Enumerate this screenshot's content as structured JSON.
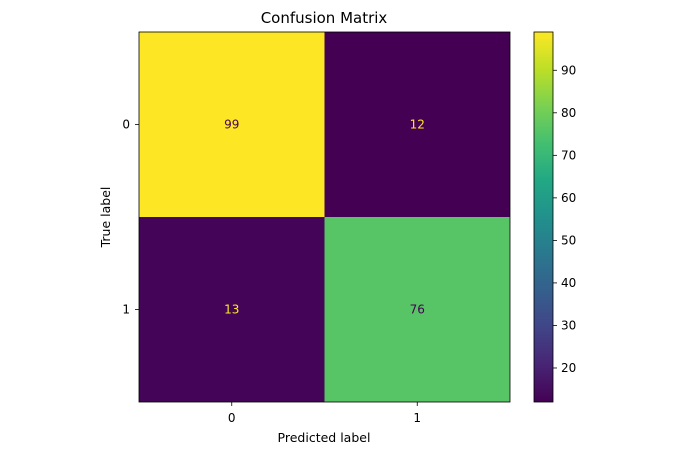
{
  "chart_data": {
    "type": "heatmap",
    "title": "Confusion Matrix",
    "xlabel": "Predicted label",
    "ylabel": "True label",
    "x_categories": [
      "0",
      "1"
    ],
    "y_categories": [
      "0",
      "1"
    ],
    "matrix": [
      [
        99,
        12
      ],
      [
        13,
        76
      ]
    ],
    "colormap": "viridis",
    "colorbar": {
      "vmin": 12,
      "vmax": 99,
      "ticks": [
        20,
        30,
        40,
        50,
        60,
        70,
        80,
        90
      ]
    },
    "text_color_light": "#fde725",
    "text_color_dark": "#440154"
  }
}
